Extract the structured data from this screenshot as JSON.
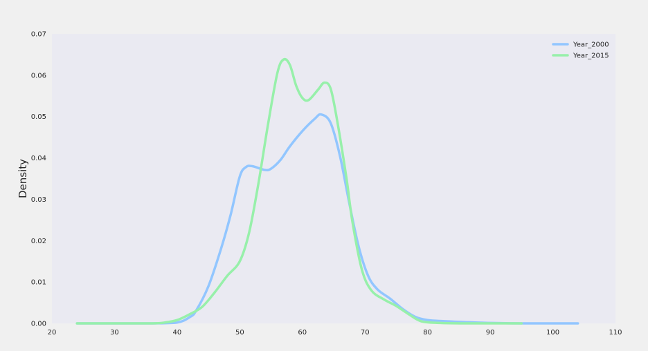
{
  "chart_data": {
    "type": "line",
    "title": "",
    "xlabel": "",
    "ylabel": "Density",
    "xlim": [
      20,
      110
    ],
    "ylim": [
      0,
      0.07
    ],
    "xticks": [
      20,
      30,
      40,
      50,
      60,
      70,
      80,
      90,
      100,
      110
    ],
    "yticks": [
      0.0,
      0.01,
      0.02,
      0.03,
      0.04,
      0.05,
      0.06,
      0.07
    ],
    "xtick_labels": [
      "20",
      "30",
      "40",
      "50",
      "60",
      "70",
      "80",
      "90",
      "100",
      "110"
    ],
    "ytick_labels": [
      "0.00",
      "0.01",
      "0.02",
      "0.03",
      "0.04",
      "0.05",
      "0.06",
      "0.07"
    ],
    "grid": false,
    "legend_position": "top-right",
    "background": "#eaeaf2",
    "series": [
      {
        "name": "Year_2000",
        "color": "#92c6ff",
        "points": [
          [
            24,
            0
          ],
          [
            30,
            0
          ],
          [
            36,
            0
          ],
          [
            40,
            0.0002
          ],
          [
            42,
            0.0015
          ],
          [
            43,
            0.003
          ],
          [
            45,
            0.009
          ],
          [
            47,
            0.018
          ],
          [
            48.5,
            0.026
          ],
          [
            50,
            0.0355
          ],
          [
            51,
            0.0378
          ],
          [
            52,
            0.038
          ],
          [
            54,
            0.0371
          ],
          [
            55,
            0.0374
          ],
          [
            56.5,
            0.0395
          ],
          [
            58,
            0.0428
          ],
          [
            60,
            0.0465
          ],
          [
            62,
            0.0495
          ],
          [
            63,
            0.0505
          ],
          [
            64.5,
            0.0485
          ],
          [
            66,
            0.0405
          ],
          [
            67.5,
            0.029
          ],
          [
            69,
            0.0185
          ],
          [
            70.5,
            0.0115
          ],
          [
            72,
            0.0082
          ],
          [
            74,
            0.006
          ],
          [
            76,
            0.0035
          ],
          [
            78,
            0.0016
          ],
          [
            80,
            0.0008
          ],
          [
            83,
            0.0005
          ],
          [
            86,
            0.0003
          ],
          [
            90,
            0.0001
          ],
          [
            95,
            0
          ],
          [
            100,
            0
          ],
          [
            104,
            0
          ]
        ]
      },
      {
        "name": "Year_2015",
        "color": "#97f0aa",
        "points": [
          [
            24,
            0
          ],
          [
            30,
            0
          ],
          [
            36,
            0
          ],
          [
            38,
            0.0002
          ],
          [
            40,
            0.0008
          ],
          [
            42,
            0.0022
          ],
          [
            44,
            0.004
          ],
          [
            46,
            0.0075
          ],
          [
            48,
            0.0115
          ],
          [
            50,
            0.015
          ],
          [
            51.5,
            0.022
          ],
          [
            53,
            0.034
          ],
          [
            54.5,
            0.048
          ],
          [
            56,
            0.0605
          ],
          [
            57,
            0.0638
          ],
          [
            58,
            0.0625
          ],
          [
            59,
            0.0575
          ],
          [
            60,
            0.0545
          ],
          [
            61,
            0.054
          ],
          [
            62.5,
            0.0565
          ],
          [
            63.5,
            0.0582
          ],
          [
            64.5,
            0.0568
          ],
          [
            65.5,
            0.0495
          ],
          [
            67,
            0.0355
          ],
          [
            68,
            0.0245
          ],
          [
            69.5,
            0.013
          ],
          [
            71,
            0.008
          ],
          [
            73,
            0.0058
          ],
          [
            75,
            0.0042
          ],
          [
            77,
            0.0022
          ],
          [
            79,
            0.0005
          ],
          [
            82,
            0.0001
          ],
          [
            86,
            0
          ],
          [
            90,
            0
          ],
          [
            95,
            0
          ]
        ]
      }
    ]
  }
}
